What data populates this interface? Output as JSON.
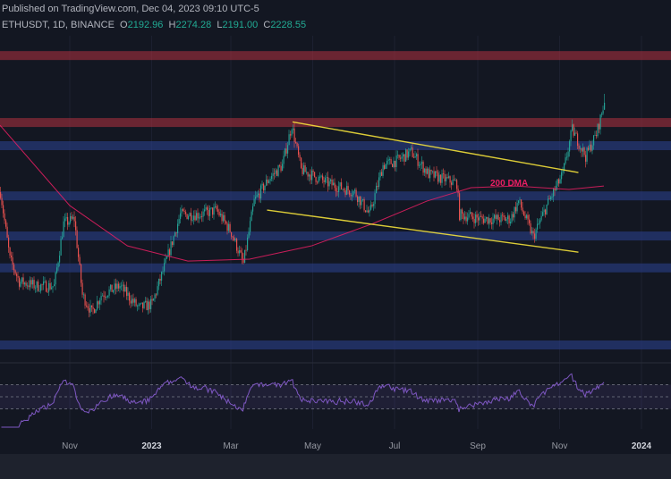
{
  "header": {
    "published": "Published on TradingView.com, Dec 04, 2023 09:10 UTC-5",
    "symbol_info": "ETHUSDT, 1D, BINANCE",
    "ohlc": {
      "o_label": "O",
      "o": "2192.96",
      "h_label": "H",
      "h": "2274.28",
      "l_label": "L",
      "l": "2191.00",
      "c_label": "C",
      "c": "2228.55"
    }
  },
  "chart_data": {
    "type": "candlestick",
    "interval": "1D",
    "x_range": [
      "2022-09-10",
      "2023-12-13"
    ],
    "y_range": [
      880,
      2520
    ],
    "y_axis_labels": "none shown",
    "x_ticks": [
      {
        "label": "Nov",
        "date": "2022-11-01",
        "bold": false
      },
      {
        "label": "2023",
        "date": "2023-01-01",
        "bold": true
      },
      {
        "label": "Mar",
        "date": "2023-03-01",
        "bold": false
      },
      {
        "label": "May",
        "date": "2023-05-01",
        "bold": false
      },
      {
        "label": "Jul",
        "date": "2023-07-01",
        "bold": false
      },
      {
        "label": "Sep",
        "date": "2023-09-01",
        "bold": false
      },
      {
        "label": "Nov",
        "date": "2023-11-01",
        "bold": false
      },
      {
        "label": "2024",
        "date": "2024-01-01",
        "bold": true
      }
    ],
    "close_path": [
      [
        "2022-09-10",
        1769
      ],
      [
        "2022-09-17",
        1425
      ],
      [
        "2022-09-24",
        1310
      ],
      [
        "2022-10-07",
        1287
      ],
      [
        "2022-10-20",
        1287
      ],
      [
        "2022-10-27",
        1608
      ],
      [
        "2022-11-04",
        1631
      ],
      [
        "2022-11-10",
        1241
      ],
      [
        "2022-11-17",
        1150
      ],
      [
        "2022-11-24",
        1241
      ],
      [
        "2022-12-08",
        1287
      ],
      [
        "2022-12-22",
        1172
      ],
      [
        "2023-01-01",
        1195
      ],
      [
        "2023-01-12",
        1425
      ],
      [
        "2023-01-22",
        1654
      ],
      [
        "2023-02-05",
        1654
      ],
      [
        "2023-02-18",
        1677
      ],
      [
        "2023-03-01",
        1562
      ],
      [
        "2023-03-10",
        1402
      ],
      [
        "2023-03-18",
        1723
      ],
      [
        "2023-03-29",
        1838
      ],
      [
        "2023-04-08",
        1907
      ],
      [
        "2023-04-15",
        2113
      ],
      [
        "2023-04-22",
        1884
      ],
      [
        "2023-05-12",
        1815
      ],
      [
        "2023-06-01",
        1769
      ],
      [
        "2023-06-12",
        1654
      ],
      [
        "2023-06-22",
        1907
      ],
      [
        "2023-07-02",
        1930
      ],
      [
        "2023-07-13",
        1976
      ],
      [
        "2023-07-26",
        1861
      ],
      [
        "2023-08-16",
        1815
      ],
      [
        "2023-08-18",
        1654
      ],
      [
        "2023-09-04",
        1631
      ],
      [
        "2023-09-25",
        1631
      ],
      [
        "2023-10-01",
        1723
      ],
      [
        "2023-10-12",
        1539
      ],
      [
        "2023-10-22",
        1700
      ],
      [
        "2023-11-03",
        1861
      ],
      [
        "2023-11-10",
        2090
      ],
      [
        "2023-11-20",
        1953
      ],
      [
        "2023-11-28",
        2067
      ],
      [
        "2023-12-04",
        2228.55
      ]
    ],
    "ma200": {
      "label": "200 DMA",
      "color": "#e91e63",
      "points": [
        [
          "2022-09-10",
          2113
        ],
        [
          "2022-11-01",
          1700
        ],
        [
          "2022-12-14",
          1493
        ],
        [
          "2023-01-28",
          1415
        ],
        [
          "2023-03-15",
          1425
        ],
        [
          "2023-04-30",
          1493
        ],
        [
          "2023-06-15",
          1608
        ],
        [
          "2023-07-25",
          1723
        ],
        [
          "2023-08-27",
          1792
        ],
        [
          "2023-09-29",
          1801
        ],
        [
          "2023-11-08",
          1783
        ],
        [
          "2023-12-04",
          1801
        ]
      ]
    },
    "zones": [
      {
        "kind": "resistance",
        "color": "#b2323f",
        "price": 2471
      },
      {
        "kind": "resistance",
        "color": "#b2323f",
        "price": 2127
      },
      {
        "kind": "support",
        "color": "#2a3f8a",
        "price": 2008
      },
      {
        "kind": "support",
        "color": "#2a3f8a",
        "price": 1750
      },
      {
        "kind": "support",
        "color": "#2a3f8a",
        "price": 1544
      },
      {
        "kind": "support",
        "color": "#2a3f8a",
        "price": 1380
      },
      {
        "kind": "support",
        "color": "#2a3f8a",
        "price": 984
      }
    ],
    "trendlines": [
      {
        "name": "channel-upper",
        "color": "#ffeb3b",
        "from": [
          "2023-04-16",
          2130
        ],
        "to": [
          "2023-11-15",
          1870
        ]
      },
      {
        "name": "channel-lower",
        "color": "#ffeb3b",
        "from": [
          "2023-03-28",
          1677
        ],
        "to": [
          "2023-11-15",
          1461
        ]
      }
    ],
    "rsi": {
      "period": 14,
      "upper": 70,
      "lower": 30,
      "middle": 50,
      "color": "#7e57c2"
    },
    "colors": {
      "up": "#26a69a",
      "down": "#ef5350",
      "background": "#131722"
    }
  }
}
